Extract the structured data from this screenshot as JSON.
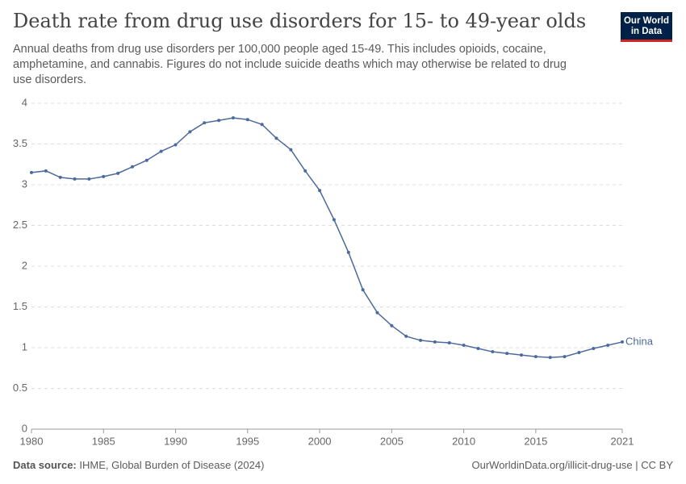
{
  "chart_data": {
    "type": "line",
    "title": "Death rate from drug use disorders for 15- to 49-year olds",
    "subtitle": "Annual deaths from drug use disorders per 100,000 people aged 15-49. This includes opioids, cocaine, amphetamine, and cannabis. Figures do not include suicide deaths which may otherwise be related to drug use disorders.",
    "logo": [
      "Our World",
      "in Data"
    ],
    "source_label": "Data source:",
    "source": "IHME, Global Burden of Disease (2024)",
    "footer_right": "OurWorldinData.org/illicit-drug-use | CC BY",
    "x": [
      1980,
      1981,
      1982,
      1983,
      1984,
      1985,
      1986,
      1987,
      1988,
      1989,
      1990,
      1991,
      1992,
      1993,
      1994,
      1995,
      1996,
      1997,
      1998,
      1999,
      2000,
      2001,
      2002,
      2003,
      2004,
      2005,
      2006,
      2007,
      2008,
      2009,
      2010,
      2011,
      2012,
      2013,
      2014,
      2015,
      2016,
      2017,
      2018,
      2019,
      2020,
      2021
    ],
    "series": [
      {
        "name": "China",
        "color": "#4c6a9c",
        "values": [
          3.15,
          3.17,
          3.09,
          3.07,
          3.07,
          3.1,
          3.14,
          3.22,
          3.3,
          3.41,
          3.49,
          3.65,
          3.76,
          3.79,
          3.82,
          3.8,
          3.74,
          3.57,
          3.43,
          3.17,
          2.93,
          2.57,
          2.17,
          1.71,
          1.43,
          1.27,
          1.14,
          1.09,
          1.07,
          1.06,
          1.03,
          0.99,
          0.95,
          0.93,
          0.91,
          0.89,
          0.88,
          0.89,
          0.94,
          0.99,
          1.03,
          1.07
        ]
      }
    ],
    "xlim": [
      1980,
      2021
    ],
    "xticks": [
      1980,
      1985,
      1990,
      1995,
      2000,
      2005,
      2010,
      2015,
      2021
    ],
    "ylim": [
      0,
      4
    ],
    "yticks": [
      0,
      0.5,
      1,
      1.5,
      2,
      2.5,
      3,
      3.5,
      4
    ],
    "grid": true
  }
}
